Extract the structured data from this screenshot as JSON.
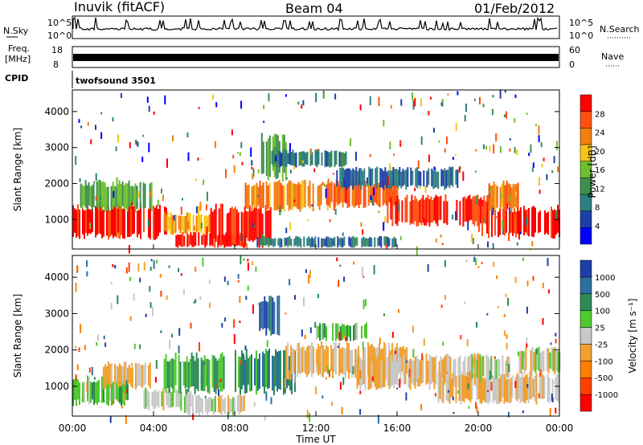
{
  "header": {
    "title": "Inuvik (fitACF)",
    "beam": "Beam 04",
    "date": "01/Feb/2012"
  },
  "top_panels": {
    "nsky_label": "N.Sky",
    "nsearch_label": "N.Search",
    "noise_ticks": [
      "10^5",
      "10^0"
    ],
    "freq_label": "Freq.",
    "freq_unit": "[MHz]",
    "freq_ticks": [
      "18",
      "8"
    ],
    "nave_label": "Nave",
    "nave_ticks": [
      "60",
      "0"
    ],
    "cpid_label": "CPID",
    "cpid_value": "twofsound 3501"
  },
  "colors": {
    "power_scale": [
      "#0000ff",
      "#1f3fa8",
      "#2e7f7f",
      "#3f8f4f",
      "#6fbf2f",
      "#f5c518",
      "#f08010",
      "#ff5010",
      "#ff0000"
    ],
    "velocity_scale": [
      "#ff0000",
      "#ff4000",
      "#ff7f00",
      "#f0a030",
      "#c8c8c8",
      "#50c830",
      "#2e8b57",
      "#2e6f9f",
      "#1e3fa8"
    ]
  },
  "chart_data": [
    {
      "type": "heatmap",
      "name": "power",
      "xlabel": "Time UT",
      "ylabel": "Slant Range [km]",
      "x_tick_labels": [
        "00:00",
        "04:00",
        "08:00",
        "12:00",
        "16:00",
        "20:00",
        "00:00"
      ],
      "xlim_hours": [
        0,
        24
      ],
      "ylim": [
        180,
        4600
      ],
      "y_tick_labels": [
        "1000",
        "2000",
        "3000",
        "4000"
      ],
      "colorbar_label": "Power [dB]",
      "colorbar_ticks": [
        "28",
        "24",
        "20",
        "16",
        "12",
        "8",
        "4"
      ],
      "clim": [
        0,
        30
      ],
      "regions": [
        {
          "t0": 0.0,
          "t1": 4.6,
          "r0": 550,
          "r1": 1350,
          "level": 28
        },
        {
          "t0": 4.5,
          "t1": 7.0,
          "r0": 650,
          "r1": 1150,
          "level": 20
        },
        {
          "t0": 5.0,
          "t1": 8.5,
          "r0": 250,
          "r1": 600,
          "level": 28
        },
        {
          "t0": 6.8,
          "t1": 9.8,
          "r0": 350,
          "r1": 1300,
          "level": 28
        },
        {
          "t0": 8.5,
          "t1": 13.0,
          "r0": 1300,
          "r1": 2000,
          "level": 22
        },
        {
          "t0": 9.3,
          "t1": 10.5,
          "r0": 2200,
          "r1": 3300,
          "level": 14
        },
        {
          "t0": 12.5,
          "t1": 16.0,
          "r0": 1400,
          "r1": 2000,
          "level": 24
        },
        {
          "t0": 15.5,
          "t1": 20.5,
          "r0": 900,
          "r1": 1600,
          "level": 27
        },
        {
          "t0": 20.0,
          "t1": 24.0,
          "r0": 550,
          "r1": 1300,
          "level": 28
        },
        {
          "t0": 20.5,
          "t1": 22.0,
          "r0": 1300,
          "r1": 2000,
          "level": 22
        },
        {
          "t0": 13.0,
          "t1": 19.0,
          "r0": 1900,
          "r1": 2400,
          "level": 7
        },
        {
          "t0": 0.3,
          "t1": 4.0,
          "r0": 1300,
          "r1": 2000,
          "level": 13
        },
        {
          "t0": 9.8,
          "t1": 13.5,
          "r0": 2500,
          "r1": 2900,
          "level": 9
        },
        {
          "t0": 9.0,
          "t1": 16.0,
          "r0": 250,
          "r1": 500,
          "level": 8
        }
      ]
    },
    {
      "type": "heatmap",
      "name": "velocity",
      "xlabel": "Time UT",
      "ylabel": "Slant Range [km]",
      "x_tick_labels": [
        "00:00",
        "04:00",
        "08:00",
        "12:00",
        "16:00",
        "20:00",
        "00:00"
      ],
      "xlim_hours": [
        0,
        24
      ],
      "ylim": [
        180,
        4600
      ],
      "y_tick_labels": [
        "1000",
        "2000",
        "3000",
        "4000"
      ],
      "colorbar_label": "Velocity [m s⁻¹]",
      "colorbar_ticks": [
        "1000",
        "500",
        "100",
        "25",
        "-25",
        "-100",
        "-500",
        "-1000"
      ],
      "clim": [
        -1200,
        1200
      ],
      "regions": [
        {
          "t0": 0.0,
          "t1": 2.8,
          "r0": 550,
          "r1": 1200,
          "level": 300
        },
        {
          "t0": 1.5,
          "t1": 3.8,
          "r0": 1000,
          "r1": 1600,
          "level": -200
        },
        {
          "t0": 3.5,
          "t1": 6.0,
          "r0": 400,
          "r1": 900,
          "level": 0
        },
        {
          "t0": 5.5,
          "t1": 8.5,
          "r0": 250,
          "r1": 700,
          "level": 0
        },
        {
          "t0": 4.5,
          "t1": 7.5,
          "r0": 900,
          "r1": 1800,
          "level": 400
        },
        {
          "t0": 8.0,
          "t1": 11.0,
          "r0": 900,
          "r1": 1900,
          "level": 600
        },
        {
          "t0": 9.2,
          "t1": 10.2,
          "r0": 2500,
          "r1": 3400,
          "level": 800
        },
        {
          "t0": 10.5,
          "t1": 16.5,
          "r0": 1300,
          "r1": 2100,
          "level": -150
        },
        {
          "t0": 14.0,
          "t1": 20.0,
          "r0": 1000,
          "r1": 1800,
          "level": -150
        },
        {
          "t0": 18.0,
          "t1": 24.0,
          "r0": 600,
          "r1": 1300,
          "level": -120
        },
        {
          "t0": 19.5,
          "t1": 21.5,
          "r0": 1200,
          "r1": 1800,
          "level": 0
        },
        {
          "t0": 22.0,
          "t1": 24.0,
          "r0": 1400,
          "r1": 2000,
          "level": 0
        },
        {
          "t0": 12.0,
          "t1": 14.5,
          "r0": 2300,
          "r1": 2700,
          "level": 300
        }
      ]
    }
  ]
}
